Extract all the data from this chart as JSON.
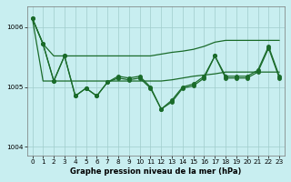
{
  "xlabel": "Graphe pression niveau de la mer (hPa)",
  "bg_color": "#c8eef0",
  "grid_color": "#a0cccc",
  "line_color": "#1a6b2a",
  "xlim": [
    -0.5,
    23.5
  ],
  "ylim": [
    1003.85,
    1006.35
  ],
  "yticks": [
    1004,
    1005,
    1006
  ],
  "xticks": [
    0,
    1,
    2,
    3,
    4,
    5,
    6,
    7,
    8,
    9,
    10,
    11,
    12,
    13,
    14,
    15,
    16,
    17,
    18,
    19,
    20,
    21,
    22,
    23
  ],
  "marker_size": 2.5,
  "line_width": 0.9,
  "y_jagged": [
    1006.15,
    1005.72,
    1005.1,
    1005.52,
    1004.85,
    1004.98,
    1004.85,
    1005.08,
    1005.18,
    1005.15,
    1005.18,
    1005.0,
    1004.63,
    1004.78,
    1005.0,
    1005.05,
    1005.18,
    1005.52,
    1005.18,
    1005.18,
    1005.18,
    1005.28,
    1005.68,
    1005.18
  ],
  "y_env_top": [
    1006.15,
    1005.72,
    1005.52,
    1005.52,
    1005.52,
    1005.52,
    1005.52,
    1005.52,
    1005.52,
    1005.52,
    1005.52,
    1005.52,
    1005.55,
    1005.58,
    1005.6,
    1005.63,
    1005.68,
    1005.75,
    1005.78,
    1005.78,
    1005.78,
    1005.78,
    1005.78,
    1005.78
  ],
  "y_env_bot": [
    1006.15,
    1005.1,
    1005.1,
    1005.1,
    1005.1,
    1005.1,
    1005.1,
    1005.1,
    1005.1,
    1005.1,
    1005.1,
    1005.1,
    1005.1,
    1005.12,
    1005.15,
    1005.18,
    1005.2,
    1005.22,
    1005.25,
    1005.25,
    1005.25,
    1005.25,
    1005.25,
    1005.25
  ],
  "xlabel_fontsize": 6.0,
  "tick_fontsize": 5.2
}
